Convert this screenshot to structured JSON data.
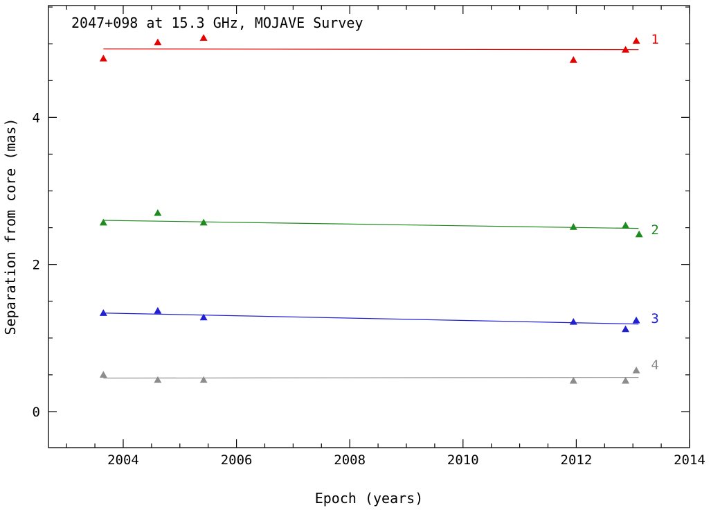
{
  "chart_data": {
    "type": "scatter",
    "title": "2047+098 at 15.3 GHz, MOJAVE Survey",
    "xlabel": "Epoch (years)",
    "ylabel": "Separation from core (mas)",
    "xlim": [
      2002.68,
      2014.0
    ],
    "ylim": [
      -0.49,
      5.52
    ],
    "x_major_ticks": [
      2004,
      2006,
      2008,
      2010,
      2012,
      2014
    ],
    "x_minor_step": 0.5,
    "y_major_ticks": [
      0,
      2,
      4
    ],
    "y_minor_step": 0.5,
    "grid": false,
    "legend_position": "labels-right-of-series",
    "frame_color": "#000000",
    "series": [
      {
        "name": "1",
        "color": "#e60000",
        "marker": "triangle-up",
        "x": [
          2003.65,
          2004.61,
          2005.42,
          2011.95,
          2012.87,
          2013.06
        ],
        "y": [
          4.8,
          5.02,
          5.08,
          4.78,
          4.92,
          5.04
        ],
        "fit_line": {
          "x": [
            2003.65,
            2013.1
          ],
          "y": [
            4.93,
            4.92
          ]
        },
        "label_pos": {
          "x": 2013.32,
          "y": 5.06
        }
      },
      {
        "name": "2",
        "color": "#1f8a1f",
        "marker": "triangle-up",
        "x": [
          2003.65,
          2004.61,
          2005.42,
          2011.95,
          2012.87,
          2013.11
        ],
        "y": [
          2.57,
          2.7,
          2.57,
          2.51,
          2.53,
          2.41
        ],
        "fit_line": {
          "x": [
            2003.65,
            2013.1
          ],
          "y": [
            2.6,
            2.49
          ]
        },
        "label_pos": {
          "x": 2013.32,
          "y": 2.47
        }
      },
      {
        "name": "3",
        "color": "#2020d0",
        "marker": "triangle-up",
        "x": [
          2003.65,
          2004.61,
          2005.42,
          2011.95,
          2012.87,
          2013.06
        ],
        "y": [
          1.34,
          1.37,
          1.28,
          1.22,
          1.12,
          1.24
        ],
        "fit_line": {
          "x": [
            2003.65,
            2013.1
          ],
          "y": [
            1.34,
            1.19
          ]
        },
        "label_pos": {
          "x": 2013.32,
          "y": 1.26
        }
      },
      {
        "name": "4",
        "color": "#8c8c8c",
        "marker": "triangle-up",
        "x": [
          2003.65,
          2004.61,
          2005.42,
          2011.95,
          2012.87,
          2013.06
        ],
        "y": [
          0.5,
          0.43,
          0.43,
          0.42,
          0.42,
          0.56
        ],
        "fit_line": {
          "x": [
            2003.65,
            2013.1
          ],
          "y": [
            0.455,
            0.465
          ]
        },
        "label_pos": {
          "x": 2013.32,
          "y": 0.63
        }
      }
    ]
  }
}
